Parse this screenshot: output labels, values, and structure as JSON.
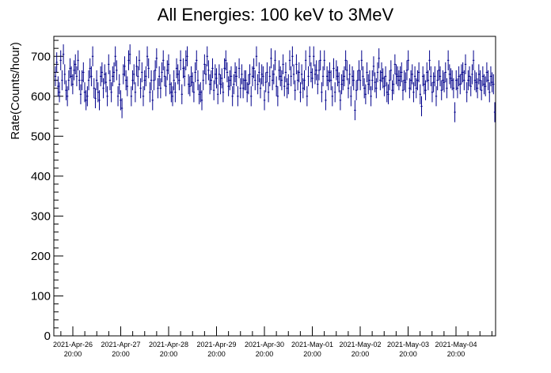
{
  "chart_data": {
    "type": "scatter",
    "title": "All Energies:  100 keV to 3MeV",
    "ylabel": "Rate(Counts/hour)",
    "xlabel": "",
    "ylim": [
      0,
      750
    ],
    "xlim_days": [
      0,
      9.1
    ],
    "yticks": [
      0,
      100,
      200,
      300,
      400,
      500,
      600,
      700
    ],
    "xticks": [
      {
        "date": "2021-Apr-26",
        "time": "20:00"
      },
      {
        "date": "2021-Apr-27",
        "time": "20:00"
      },
      {
        "date": "2021-Apr-28",
        "time": "20:00"
      },
      {
        "date": "2021-Apr-29",
        "time": "20:00"
      },
      {
        "date": "2021-Apr-30",
        "time": "20:00"
      },
      {
        "date": "2021-May-01",
        "time": "20:00"
      },
      {
        "date": "2021-May-02",
        "time": "20:00"
      },
      {
        "date": "2021-May-03",
        "time": "20:00"
      },
      {
        "date": "2021-May-04",
        "time": "20:00"
      }
    ],
    "grid": false,
    "marker": "points with vertical error bars",
    "error_bar_half_height": 25,
    "series": [
      {
        "color": "#00008b",
        "values": [
          650,
          685,
          625,
          610,
          690,
          640,
          705,
          655,
          615,
          600,
          640,
          670,
          650,
          630,
          665,
          680,
          650,
          690,
          640,
          605,
          640,
          660,
          610,
          590,
          600,
          640,
          670,
          650,
          700,
          620,
          595,
          640,
          610,
          590,
          650,
          660,
          620,
          655,
          635,
          600,
          680,
          640,
          610,
          650,
          660,
          700,
          665,
          600,
          630,
          590,
          570,
          655,
          675,
          640,
          625,
          690,
          705,
          600,
          640,
          655,
          610,
          675,
          650,
          690,
          620,
          660,
          600,
          640,
          650,
          700,
          670,
          610,
          640,
          590,
          640,
          665,
          695,
          620,
          650,
          620,
          660,
          690,
          650,
          625,
          665,
          680,
          630,
          610,
          600,
          640,
          610,
          670,
          655,
          640,
          690,
          605,
          670,
          650,
          690,
          700,
          630,
          625,
          650,
          635,
          610,
          660,
          690,
          640,
          605,
          610,
          590,
          640,
          680,
          655,
          700,
          665,
          630,
          640,
          670,
          615,
          655,
          645,
          605,
          655,
          630,
          645,
          610,
          670,
          690,
          660,
          625,
          640,
          650,
          600,
          630,
          660,
          650,
          600,
          670,
          620,
          655,
          620,
          640,
          640,
          610,
          630,
          655,
          600,
          650,
          670,
          640,
          700,
          630,
          660,
          620,
          655,
          650,
          590,
          635,
          660,
          610,
          650,
          695,
          640,
          655,
          690,
          625,
          600,
          665,
          650,
          640,
          680,
          625,
          660,
          620,
          630,
          690,
          650,
          700,
          655,
          615,
          680,
          640,
          660,
          610,
          655,
          620,
          640,
          690,
          600,
          650,
          700,
          660,
          645,
          700,
          655,
          665,
          630,
          665,
          690,
          610,
          650,
          690,
          590,
          650,
          640,
          660,
          640,
          600,
          670,
          610,
          665,
          650,
          635,
          590,
          630,
          640,
          650,
          690,
          665,
          620,
          655,
          600,
          650,
          640,
          565,
          615,
          640,
          665,
          640,
          690,
          650,
          620,
          605,
          660,
          630,
          640,
          600,
          640,
          675,
          635,
          620,
          660,
          695,
          640,
          660,
          645,
          625,
          650,
          610,
          605,
          640,
          665,
          615,
          630,
          680,
          655,
          650,
          640,
          650,
          660,
          615,
          640,
          635,
          665,
          690,
          620,
          640,
          655,
          610,
          650,
          620,
          640,
          660,
          605,
          575,
          650,
          630,
          615,
          660,
          640,
          690,
          650,
          610,
          635,
          650,
          600,
          640,
          665,
          650,
          615,
          640,
          635,
          660,
          620,
          690,
          655,
          645,
          640,
          620,
          560,
          640,
          620,
          650,
          630,
          655,
          660,
          640,
          680,
          610,
          640,
          650,
          625,
          655,
          690,
          640,
          635,
          620,
          655,
          640,
          615,
          650,
          630,
          625,
          660,
          640,
          610,
          650,
          635,
          630,
          560
        ]
      }
    ]
  }
}
